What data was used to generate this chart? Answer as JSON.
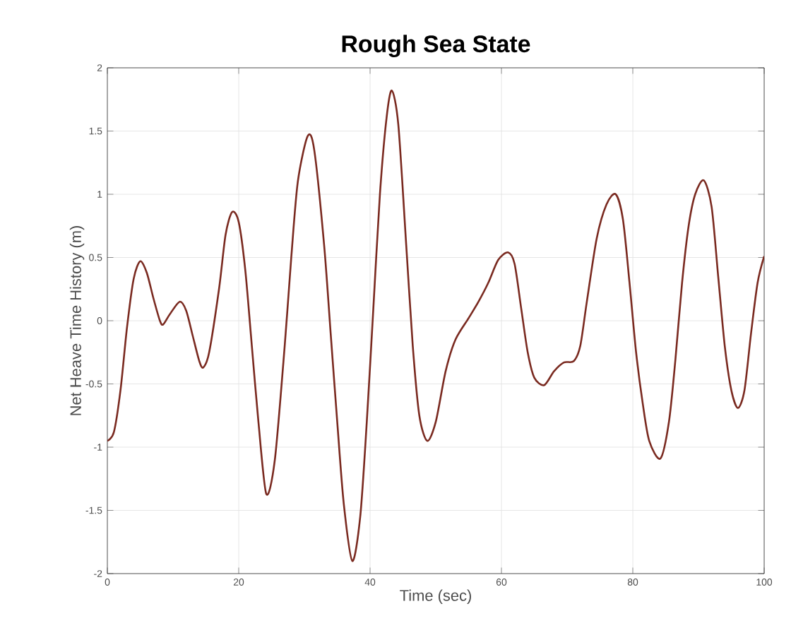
{
  "chart_data": {
    "type": "line",
    "title": "**Rough Sea State**",
    "xlabel": "Time (sec)",
    "ylabel": "Net Heave Time History  (m)",
    "xlim": [
      0,
      100
    ],
    "ylim": [
      -2,
      2
    ],
    "xticks": [
      0,
      20,
      40,
      60,
      80,
      100
    ],
    "yticks": [
      -2,
      -1.5,
      -1,
      -0.5,
      0,
      0.5,
      1,
      1.5,
      2
    ],
    "grid": true,
    "line_style": "solid",
    "marker": "none",
    "series": [
      {
        "color": "#7a2a20",
        "x": [
          0,
          1,
          2,
          3,
          4,
          5,
          6,
          7,
          8,
          8.5,
          9.5,
          11,
          12,
          13,
          14,
          14.6,
          15.5,
          17,
          18,
          19,
          20,
          21,
          22,
          23,
          24.2,
          25.5,
          27,
          28,
          29,
          30.5,
          31.5,
          33,
          34,
          35,
          36,
          37.3,
          38.5,
          39.5,
          40.5,
          41.5,
          42.5,
          43.3,
          44.3,
          45.5,
          46.5,
          47.5,
          48.7,
          50,
          51.5,
          53,
          55,
          56.5,
          58,
          59.5,
          61,
          62,
          63,
          64,
          65,
          66.5,
          68,
          69.5,
          71,
          72,
          73,
          74.5,
          76,
          77.4,
          78.5,
          79.5,
          80.5,
          81.5,
          82.5,
          84.2,
          85.5,
          86.5,
          87.5,
          88.5,
          89.5,
          90.8,
          92,
          93,
          94,
          95,
          96,
          97,
          98,
          99,
          100
        ],
        "values": [
          -0.95,
          -0.88,
          -0.55,
          -0.05,
          0.33,
          0.47,
          0.38,
          0.18,
          0.0,
          -0.03,
          0.05,
          0.15,
          0.08,
          -0.12,
          -0.32,
          -0.37,
          -0.25,
          0.25,
          0.68,
          0.86,
          0.78,
          0.4,
          -0.2,
          -0.8,
          -1.37,
          -1.1,
          -0.2,
          0.5,
          1.1,
          1.46,
          1.35,
          0.6,
          -0.1,
          -0.8,
          -1.45,
          -1.9,
          -1.55,
          -0.8,
          0.1,
          1.0,
          1.6,
          1.82,
          1.55,
          0.6,
          -0.2,
          -0.75,
          -0.95,
          -0.8,
          -0.4,
          -0.15,
          0.02,
          0.15,
          0.3,
          0.48,
          0.54,
          0.45,
          0.1,
          -0.25,
          -0.45,
          -0.51,
          -0.4,
          -0.33,
          -0.32,
          -0.2,
          0.15,
          0.65,
          0.92,
          1.0,
          0.8,
          0.3,
          -0.25,
          -0.65,
          -0.95,
          -1.09,
          -0.8,
          -0.3,
          0.3,
          0.75,
          1.0,
          1.11,
          0.9,
          0.35,
          -0.2,
          -0.55,
          -0.69,
          -0.55,
          -0.1,
          0.3,
          0.51
        ]
      }
    ]
  }
}
